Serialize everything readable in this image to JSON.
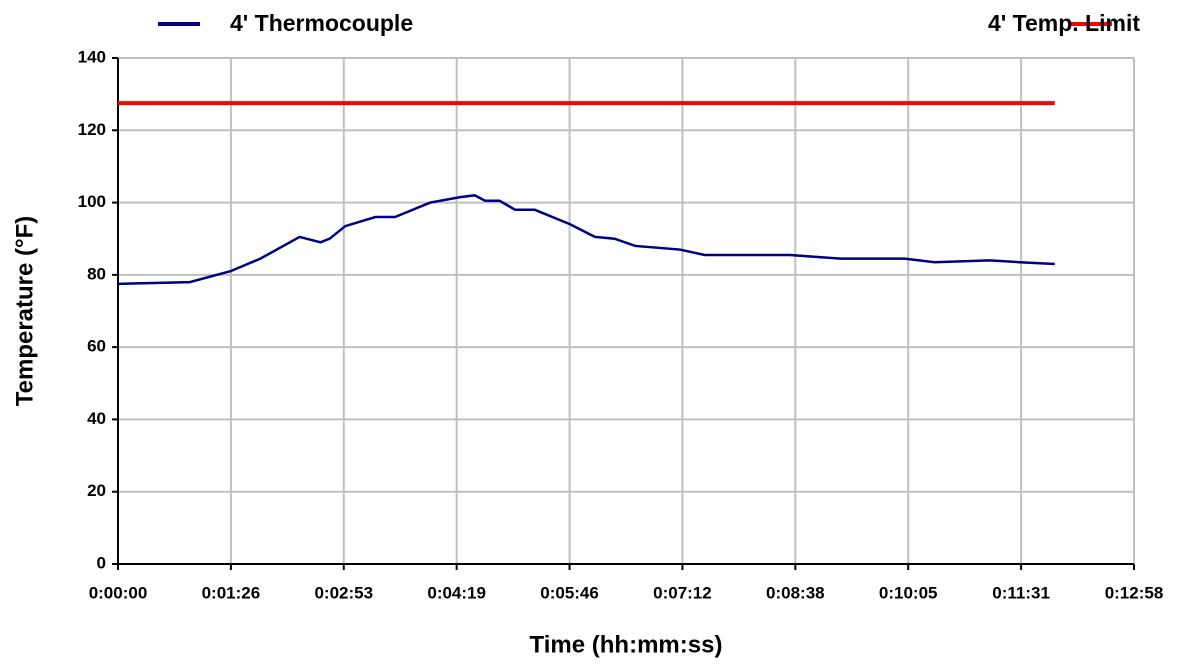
{
  "chart_data": {
    "type": "line",
    "xlabel": "Time (hh:mm:ss)",
    "ylabel": "Temperature (°F)",
    "x": [
      0,
      55,
      86,
      109,
      139,
      155,
      162,
      174,
      197,
      212,
      239,
      262,
      273,
      281,
      292,
      304,
      319,
      346,
      365,
      380,
      396,
      430,
      449,
      495,
      514,
      553,
      602,
      625,
      667,
      690,
      717
    ],
    "series": [
      {
        "name": "4' Thermocouple",
        "color": "#000080",
        "values": [
          77.5,
          78,
          81,
          84.5,
          90.5,
          89,
          90,
          93.5,
          96,
          96,
          100,
          101.5,
          102,
          100.5,
          100.5,
          98,
          98,
          94,
          90.5,
          90,
          88,
          87,
          85.5,
          85.5,
          85.5,
          84.5,
          84.5,
          83.5,
          84,
          83.5,
          83
        ]
      },
      {
        "name": "4' Temp. Limit",
        "color": "#ff0000",
        "values": [
          127.5,
          127.5,
          127.5,
          127.5,
          127.5,
          127.5,
          127.5,
          127.5,
          127.5,
          127.5,
          127.5,
          127.5,
          127.5,
          127.5,
          127.5,
          127.5,
          127.5,
          127.5,
          127.5,
          127.5,
          127.5,
          127.5,
          127.5,
          127.5,
          127.5,
          127.5,
          127.5,
          127.5,
          127.5,
          127.5,
          127.5
        ]
      }
    ],
    "xlim": [
      0,
      777.6
    ],
    "xticks": [
      {
        "value": 0,
        "label": "0:00:00"
      },
      {
        "value": 86.4,
        "label": "0:01:26"
      },
      {
        "value": 172.8,
        "label": "0:02:53"
      },
      {
        "value": 259.2,
        "label": "0:04:19"
      },
      {
        "value": 345.6,
        "label": "0:05:46"
      },
      {
        "value": 432,
        "label": "0:07:12"
      },
      {
        "value": 518.4,
        "label": "0:08:38"
      },
      {
        "value": 604.8,
        "label": "0:10:05"
      },
      {
        "value": 691.2,
        "label": "0:11:31"
      },
      {
        "value": 777.6,
        "label": "0:12:58"
      }
    ],
    "ylim": [
      0,
      140
    ],
    "yticks": [
      0,
      20,
      40,
      60,
      80,
      100,
      120,
      140
    ],
    "grid": true,
    "legend": "top"
  }
}
